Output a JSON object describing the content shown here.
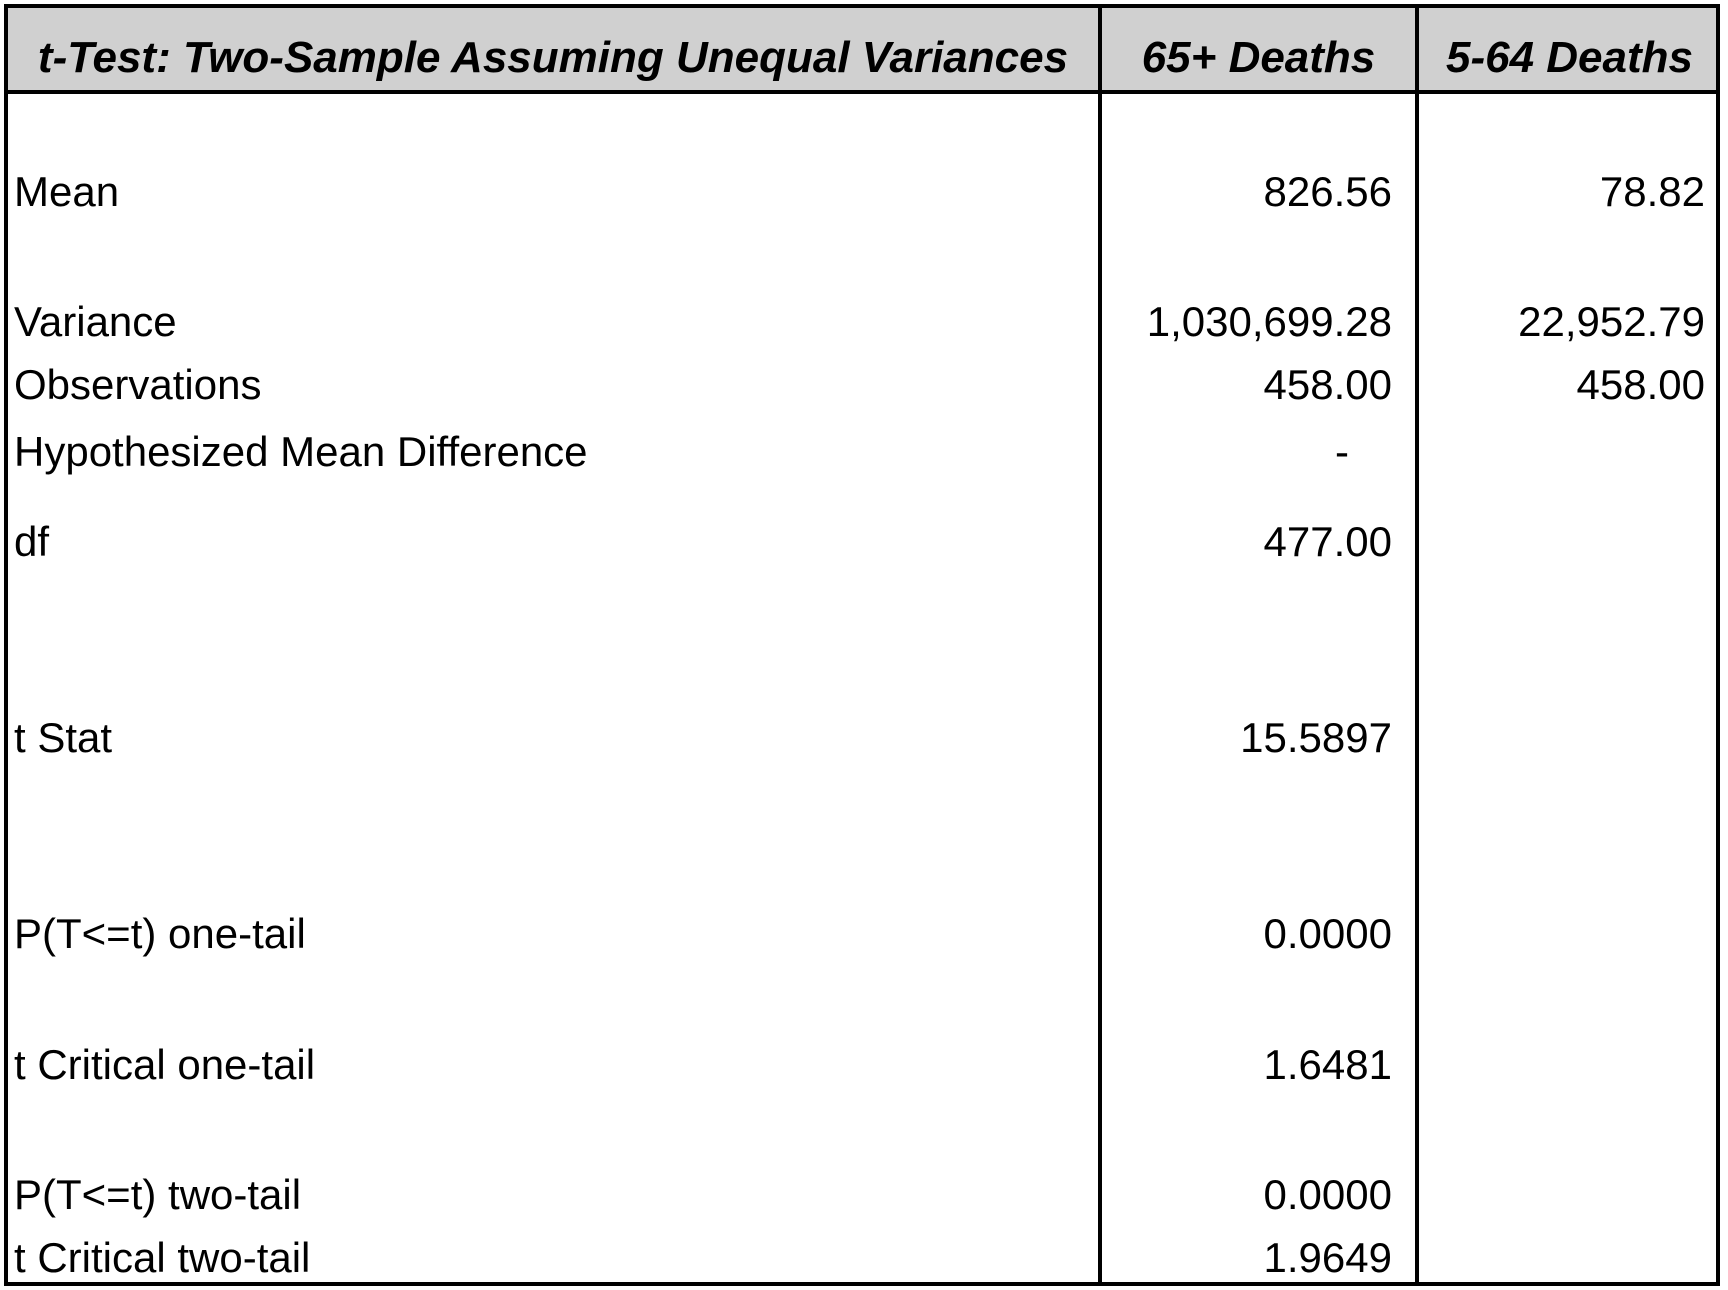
{
  "table": {
    "header": {
      "stat": "t-Test: Two-Sample Assuming Unequal Variances",
      "col1": "65+ Deaths",
      "col2": "5-64 Deaths"
    },
    "rows": [
      {
        "label": "Mean",
        "col1": "826.56",
        "col2": "78.82"
      },
      {
        "label": "Variance",
        "col1": "1,030,699.28",
        "col2": "22,952.79"
      },
      {
        "label": "Observations",
        "col1": "458.00",
        "col2": "458.00"
      },
      {
        "label": "Hypothesized Mean Difference",
        "col1": "-",
        "col2": ""
      },
      {
        "label": "df",
        "col1": "477.00",
        "col2": ""
      },
      {
        "label": "t Stat",
        "col1": "15.5897",
        "col2": ""
      },
      {
        "label": "P(T<=t) one-tail",
        "col1": "0.0000",
        "col2": ""
      },
      {
        "label": "t Critical one-tail",
        "col1": "1.6481",
        "col2": ""
      },
      {
        "label": "P(T<=t) two-tail",
        "col1": "0.0000",
        "col2": ""
      },
      {
        "label": "t Critical two-tail",
        "col1": "1.9649",
        "col2": ""
      }
    ]
  }
}
